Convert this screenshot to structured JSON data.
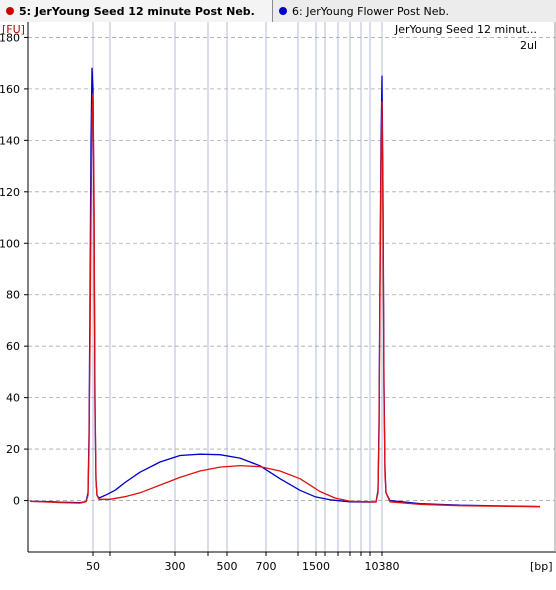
{
  "tabs": [
    {
      "label": "5: JerYoung Seed 12 minute Post Neb.",
      "color": "#cc0000"
    },
    {
      "label": "6: JerYoung Flower Post Neb.",
      "color": "#0000cc"
    }
  ],
  "chart_data": {
    "type": "line",
    "ylabel": "[FU]",
    "xlabel": "[bp]",
    "ylim": [
      -20,
      186
    ],
    "yticks": [
      0,
      20,
      40,
      60,
      80,
      100,
      120,
      140,
      160,
      180
    ],
    "xtick_labels": [
      "50",
      "300",
      "500",
      "700",
      "1500",
      "10380"
    ],
    "legend": {
      "title": "JerYoung Seed 12 minut...",
      "subtitle": "2ul"
    },
    "grid": true,
    "series": [
      {
        "name": "5: JerYoung Seed 12 minute Post Neb.",
        "color": "#e01010",
        "points": [
          [
            30,
            -0.3
          ],
          [
            50,
            -0.6
          ],
          [
            60,
            -0.8
          ],
          [
            80,
            -1
          ],
          [
            86,
            -0.5
          ],
          [
            88,
            2
          ],
          [
            89,
            20
          ],
          [
            90,
            60
          ],
          [
            91,
            110
          ],
          [
            92,
            150
          ],
          [
            93,
            158
          ],
          [
            94,
            120
          ],
          [
            95,
            40
          ],
          [
            96,
            8
          ],
          [
            97,
            2
          ],
          [
            99,
            0.5
          ],
          [
            110,
            0.5
          ],
          [
            125,
            1.5
          ],
          [
            140,
            3
          ],
          [
            160,
            6
          ],
          [
            180,
            9
          ],
          [
            200,
            11.5
          ],
          [
            220,
            13
          ],
          [
            240,
            13.6
          ],
          [
            260,
            13.2
          ],
          [
            280,
            11.5
          ],
          [
            300,
            8.5
          ],
          [
            310,
            6
          ],
          [
            320,
            3.5
          ],
          [
            335,
            1
          ],
          [
            350,
            -0.3
          ],
          [
            370,
            -0.5
          ],
          [
            376,
            -0.6
          ],
          [
            378,
            3
          ],
          [
            379,
            25
          ],
          [
            380,
            80
          ],
          [
            381,
            130
          ],
          [
            382,
            155
          ],
          [
            383,
            110
          ],
          [
            384,
            40
          ],
          [
            385,
            10
          ],
          [
            386,
            3
          ],
          [
            390,
            -0.5
          ],
          [
            420,
            -1.5
          ],
          [
            460,
            -2
          ],
          [
            500,
            -2.2
          ],
          [
            540,
            -2.4
          ]
        ]
      },
      {
        "name": "6: JerYoung Flower Post Neb.",
        "color": "#0000cc",
        "points": [
          [
            30,
            -0.3
          ],
          [
            50,
            -0.4
          ],
          [
            60,
            -0.6
          ],
          [
            80,
            -0.8
          ],
          [
            86,
            -0.4
          ],
          [
            88,
            3
          ],
          [
            89,
            25
          ],
          [
            90,
            80
          ],
          [
            91,
            140
          ],
          [
            92,
            168
          ],
          [
            93,
            160
          ],
          [
            94,
            110
          ],
          [
            95,
            35
          ],
          [
            96,
            8
          ],
          [
            97,
            2
          ],
          [
            99,
            1
          ],
          [
            105,
            2
          ],
          [
            115,
            4
          ],
          [
            125,
            7
          ],
          [
            140,
            11
          ],
          [
            160,
            15
          ],
          [
            180,
            17.5
          ],
          [
            200,
            18
          ],
          [
            220,
            17.8
          ],
          [
            240,
            16.5
          ],
          [
            260,
            13.5
          ],
          [
            280,
            8.5
          ],
          [
            300,
            4
          ],
          [
            315,
            1.5
          ],
          [
            330,
            0.3
          ],
          [
            350,
            -0.5
          ],
          [
            370,
            -0.6
          ],
          [
            376,
            -0.5
          ],
          [
            378,
            4
          ],
          [
            379,
            30
          ],
          [
            380,
            90
          ],
          [
            381,
            140
          ],
          [
            382,
            165
          ],
          [
            383,
            120
          ],
          [
            384,
            45
          ],
          [
            385,
            12
          ],
          [
            386,
            3
          ],
          [
            390,
            0
          ],
          [
            420,
            -1.2
          ],
          [
            460,
            -1.8
          ],
          [
            500,
            -2.1
          ],
          [
            540,
            -2.3
          ]
        ]
      }
    ]
  }
}
